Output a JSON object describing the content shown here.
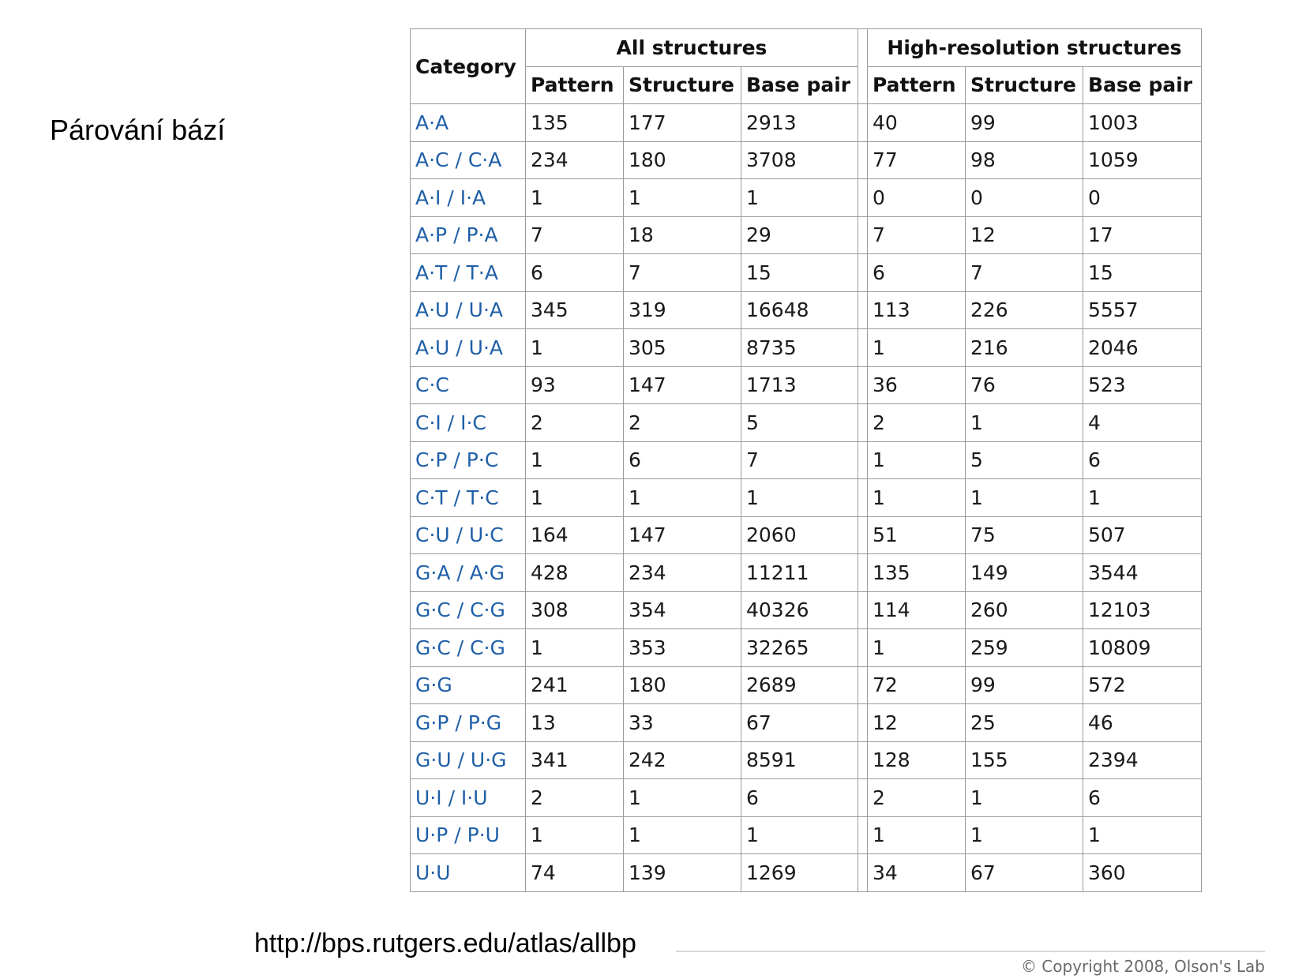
{
  "slide": {
    "title": "Párování bází"
  },
  "table": {
    "category_header": "Category",
    "groups": [
      "All structures",
      "High-resolution structures"
    ],
    "subheaders": [
      "Pattern",
      "Structure",
      "Base pair",
      "Pattern",
      "Structure",
      "Base pair"
    ],
    "rows": [
      [
        "A·A",
        "135",
        "177",
        "2913",
        "40",
        "99",
        "1003"
      ],
      [
        "A·C / C·A",
        "234",
        "180",
        "3708",
        "77",
        "98",
        "1059"
      ],
      [
        "A·I / I·A",
        "1",
        "1",
        "1",
        "0",
        "0",
        "0"
      ],
      [
        "A·P / P·A",
        "7",
        "18",
        "29",
        "7",
        "12",
        "17"
      ],
      [
        "A·T / T·A",
        "6",
        "7",
        "15",
        "6",
        "7",
        "15"
      ],
      [
        "A·U / U·A",
        "345",
        "319",
        "16648",
        "113",
        "226",
        "5557"
      ],
      [
        "A·U / U·A",
        "1",
        "305",
        "8735",
        "1",
        "216",
        "2046"
      ],
      [
        "C·C",
        "93",
        "147",
        "1713",
        "36",
        "76",
        "523"
      ],
      [
        "C·I / I·C",
        "2",
        "2",
        "5",
        "2",
        "1",
        "4"
      ],
      [
        "C·P / P·C",
        "1",
        "6",
        "7",
        "1",
        "5",
        "6"
      ],
      [
        "C·T / T·C",
        "1",
        "1",
        "1",
        "1",
        "1",
        "1"
      ],
      [
        "C·U / U·C",
        "164",
        "147",
        "2060",
        "51",
        "75",
        "507"
      ],
      [
        "G·A / A·G",
        "428",
        "234",
        "11211",
        "135",
        "149",
        "3544"
      ],
      [
        "G·C / C·G",
        "308",
        "354",
        "40326",
        "114",
        "260",
        "12103"
      ],
      [
        "G·C / C·G",
        "1",
        "353",
        "32265",
        "1",
        "259",
        "10809"
      ],
      [
        "G·G",
        "241",
        "180",
        "2689",
        "72",
        "99",
        "572"
      ],
      [
        "G·P / P·G",
        "13",
        "33",
        "67",
        "12",
        "25",
        "46"
      ],
      [
        "G·U / U·G",
        "341",
        "242",
        "8591",
        "128",
        "155",
        "2394"
      ],
      [
        "U·I / I·U",
        "2",
        "1",
        "6",
        "2",
        "1",
        "6"
      ],
      [
        "U·P / P·U",
        "1",
        "1",
        "1",
        "1",
        "1",
        "1"
      ],
      [
        "U·U",
        "74",
        "139",
        "1269",
        "34",
        "67",
        "360"
      ]
    ]
  },
  "footer": {
    "url": "http://bps.rutgers.edu/atlas/allbp",
    "copyright": "© Copyright 2008, Olson's Lab"
  },
  "colors": {
    "category_link": "#1f5fa8",
    "grid_border": "#9a9a9a",
    "copyright_text": "#6a6a6a"
  }
}
